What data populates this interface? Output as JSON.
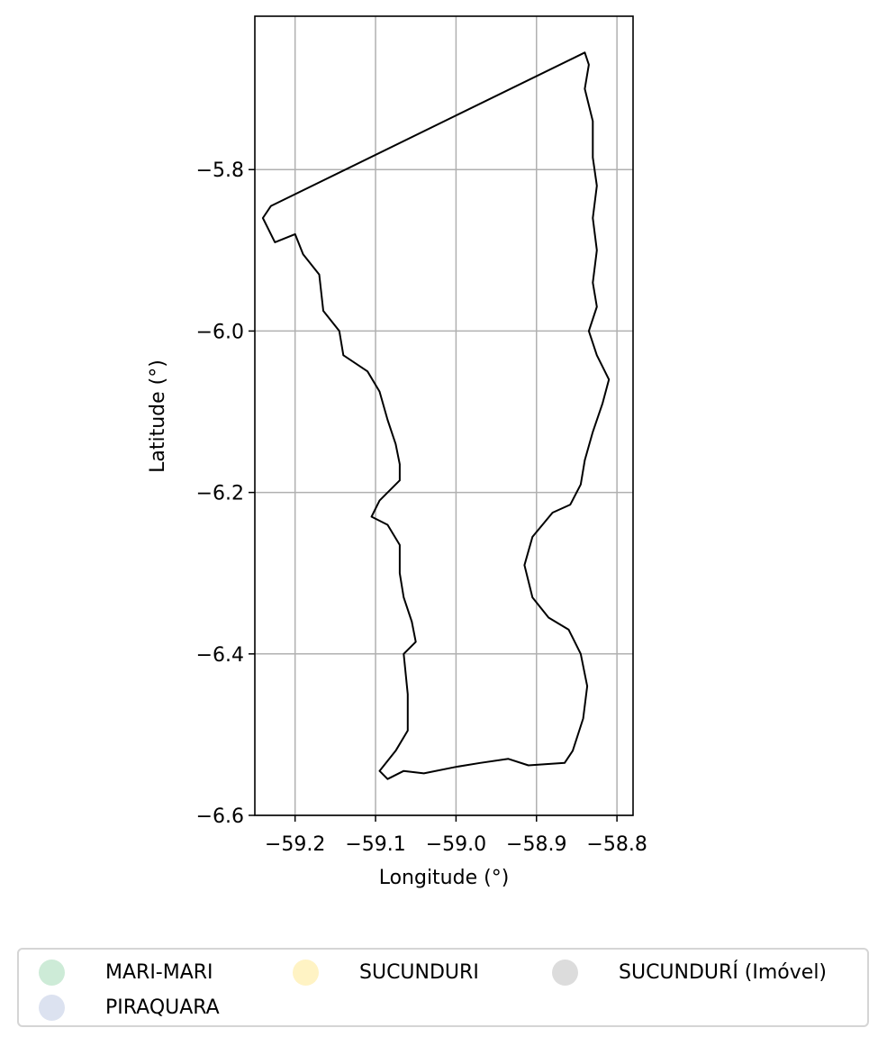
{
  "axes": {
    "xlabel": "Longitude (°)",
    "ylabel": "Latitude (°)",
    "xlim": [
      -59.25,
      -58.78
    ],
    "ylim": [
      -6.6,
      -5.61
    ],
    "xticks": [
      {
        "value": -59.2,
        "label": "−59.2"
      },
      {
        "value": -59.1,
        "label": "−59.1"
      },
      {
        "value": -59.0,
        "label": "−59.0"
      },
      {
        "value": -58.9,
        "label": "−58.9"
      },
      {
        "value": -58.8,
        "label": "−58.8"
      }
    ],
    "yticks": [
      {
        "value": -5.8,
        "label": "−5.8"
      },
      {
        "value": -6.0,
        "label": "−6.0"
      },
      {
        "value": -6.2,
        "label": "−6.2"
      },
      {
        "value": -6.4,
        "label": "−6.4"
      },
      {
        "value": -6.6,
        "label": "−6.6"
      }
    ],
    "grid": true
  },
  "boundary": {
    "stroke": "#000000",
    "points": [
      [
        -58.84,
        -5.655
      ],
      [
        -59.23,
        -5.845
      ],
      [
        -59.24,
        -5.86
      ],
      [
        -59.225,
        -5.89
      ],
      [
        -59.2,
        -5.88
      ],
      [
        -59.19,
        -5.905
      ],
      [
        -59.17,
        -5.93
      ],
      [
        -59.165,
        -5.975
      ],
      [
        -59.145,
        -6.0
      ],
      [
        -59.14,
        -6.03
      ],
      [
        -59.11,
        -6.05
      ],
      [
        -59.095,
        -6.075
      ],
      [
        -59.085,
        -6.11
      ],
      [
        -59.075,
        -6.14
      ],
      [
        -59.07,
        -6.165
      ],
      [
        -59.07,
        -6.185
      ],
      [
        -59.095,
        -6.21
      ],
      [
        -59.105,
        -6.23
      ],
      [
        -59.085,
        -6.24
      ],
      [
        -59.07,
        -6.265
      ],
      [
        -59.07,
        -6.3
      ],
      [
        -59.065,
        -6.33
      ],
      [
        -59.055,
        -6.36
      ],
      [
        -59.05,
        -6.385
      ],
      [
        -59.065,
        -6.4
      ],
      [
        -59.06,
        -6.45
      ],
      [
        -59.06,
        -6.495
      ],
      [
        -59.075,
        -6.52
      ],
      [
        -59.095,
        -6.545
      ],
      [
        -59.085,
        -6.555
      ],
      [
        -59.065,
        -6.545
      ],
      [
        -59.04,
        -6.548
      ],
      [
        -59.0,
        -6.54
      ],
      [
        -58.97,
        -6.535
      ],
      [
        -58.935,
        -6.53
      ],
      [
        -58.91,
        -6.538
      ],
      [
        -58.865,
        -6.535
      ],
      [
        -58.855,
        -6.52
      ],
      [
        -58.842,
        -6.48
      ],
      [
        -58.837,
        -6.44
      ],
      [
        -58.845,
        -6.4
      ],
      [
        -58.86,
        -6.37
      ],
      [
        -58.885,
        -6.355
      ],
      [
        -58.905,
        -6.33
      ],
      [
        -58.915,
        -6.29
      ],
      [
        -58.905,
        -6.255
      ],
      [
        -58.88,
        -6.225
      ],
      [
        -58.858,
        -6.215
      ],
      [
        -58.845,
        -6.19
      ],
      [
        -58.84,
        -6.16
      ],
      [
        -58.83,
        -6.125
      ],
      [
        -58.818,
        -6.09
      ],
      [
        -58.81,
        -6.06
      ],
      [
        -58.825,
        -6.03
      ],
      [
        -58.835,
        -6.0
      ],
      [
        -58.825,
        -5.97
      ],
      [
        -58.83,
        -5.94
      ],
      [
        -58.825,
        -5.9
      ],
      [
        -58.83,
        -5.86
      ],
      [
        -58.825,
        -5.82
      ],
      [
        -58.83,
        -5.785
      ],
      [
        -58.83,
        -5.74
      ],
      [
        -58.84,
        -5.7
      ],
      [
        -58.835,
        -5.67
      ],
      [
        -58.84,
        -5.655
      ]
    ]
  },
  "legend": {
    "entries": [
      {
        "label": "MARI-MARI",
        "color": "#cdebd7"
      },
      {
        "label": "PIRAQUARA",
        "color": "#dce2f0"
      },
      {
        "label": "SUCUNDURI",
        "color": "#fff3c4"
      },
      {
        "label": "SUCUNDURÍ (Imóvel)",
        "color": "#dcdcdc"
      }
    ]
  }
}
